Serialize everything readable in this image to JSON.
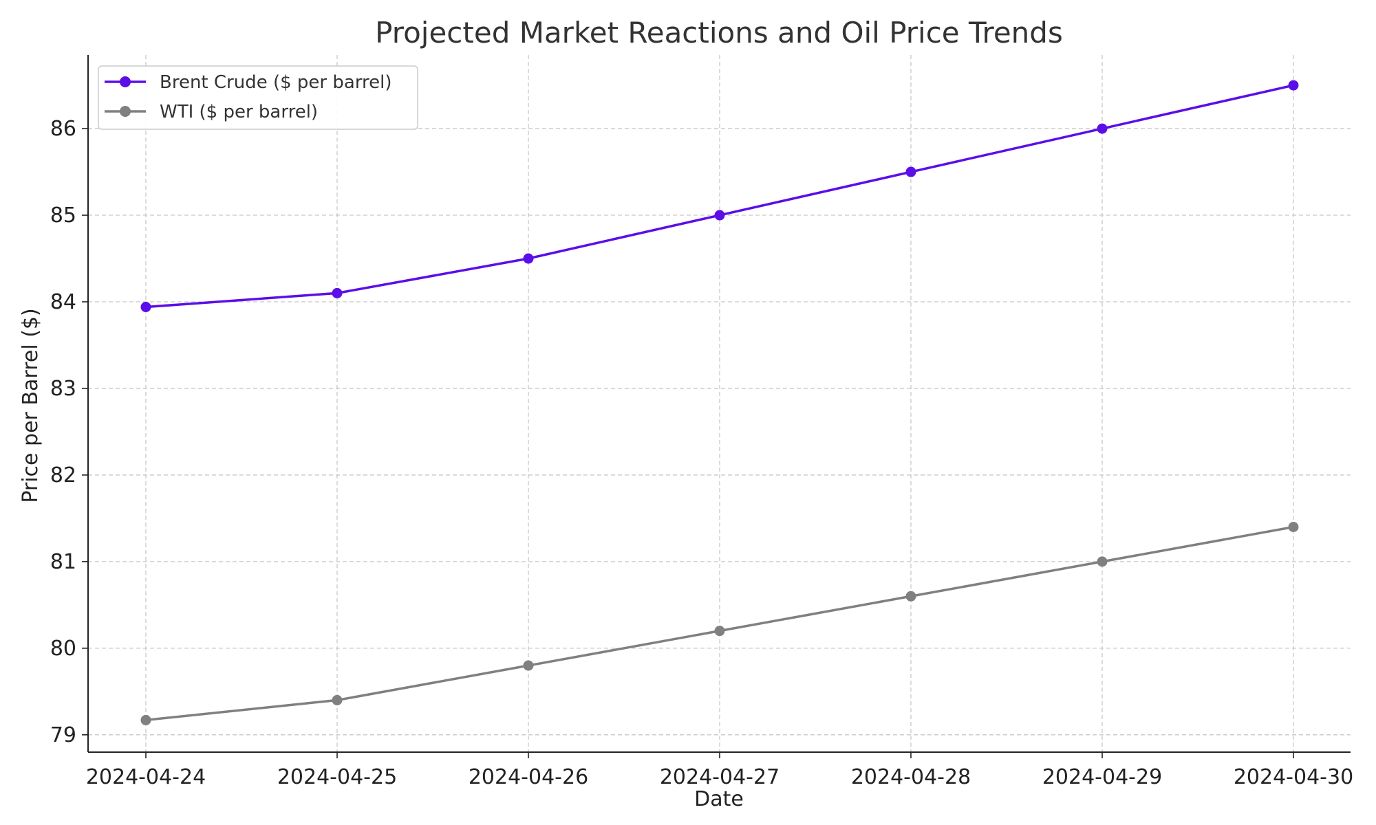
{
  "chart_data": {
    "type": "line",
    "title": "Projected Market Reactions and Oil Price Trends",
    "xlabel": "Date",
    "ylabel": "Price per Barrel ($)",
    "categories": [
      "2024-04-24",
      "2024-04-25",
      "2024-04-26",
      "2024-04-27",
      "2024-04-28",
      "2024-04-29",
      "2024-04-30"
    ],
    "ylim": [
      78.8,
      86.85
    ],
    "yticks": [
      79,
      80,
      81,
      82,
      83,
      84,
      85,
      86
    ],
    "grid": true,
    "legend_position": "upper-left",
    "series": [
      {
        "name": "Brent Crude ($ per barrel)",
        "color": "#5b0ee8",
        "marker": "circle",
        "values": [
          83.94,
          84.1,
          84.5,
          85.0,
          85.5,
          86.0,
          86.5
        ]
      },
      {
        "name": "WTI ($ per barrel)",
        "color": "#808080",
        "marker": "circle",
        "values": [
          79.17,
          79.4,
          79.8,
          80.2,
          80.6,
          81.0,
          81.4
        ]
      }
    ]
  }
}
